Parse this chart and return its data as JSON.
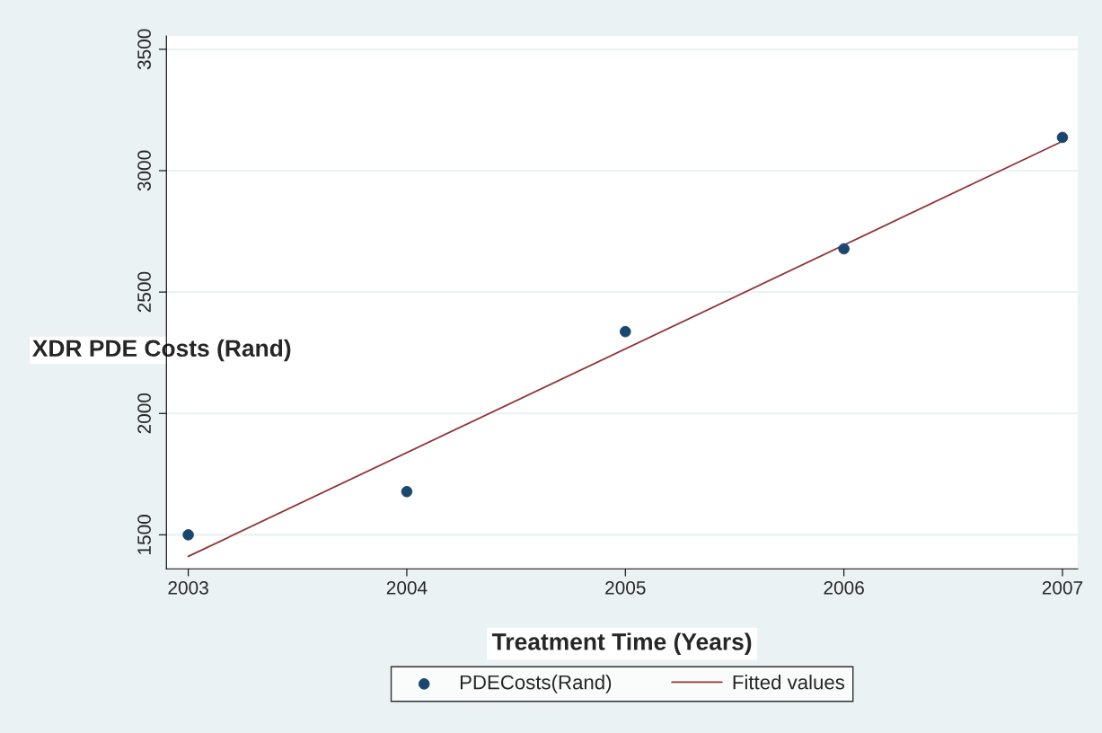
{
  "chart_data": {
    "type": "scatter",
    "xlabel": "Treatment Time (Years)",
    "ylabel": "XDR PDE Costs (Rand)",
    "x": [
      2003,
      2004,
      2005,
      2006,
      2007
    ],
    "series": [
      {
        "name": "PDECosts(Rand)",
        "color": "#1a476f",
        "marker": "circle",
        "values": [
          1500,
          1678,
          2337,
          2678,
          3137
        ]
      },
      {
        "name": "Fitted values",
        "type": "line",
        "color": "#90353b",
        "marker": "none",
        "line_style": "solid",
        "x": [
          2003,
          2007
        ],
        "values": [
          1411,
          3121
        ]
      }
    ],
    "xlim": [
      2002.9,
      2007.07
    ],
    "ylim": [
      1360,
      3555
    ],
    "xticks": [
      2003,
      2004,
      2005,
      2006,
      2007
    ],
    "yticks": [
      1500,
      2000,
      2500,
      3000,
      3500
    ],
    "grid": "y",
    "legend": "bottom"
  }
}
